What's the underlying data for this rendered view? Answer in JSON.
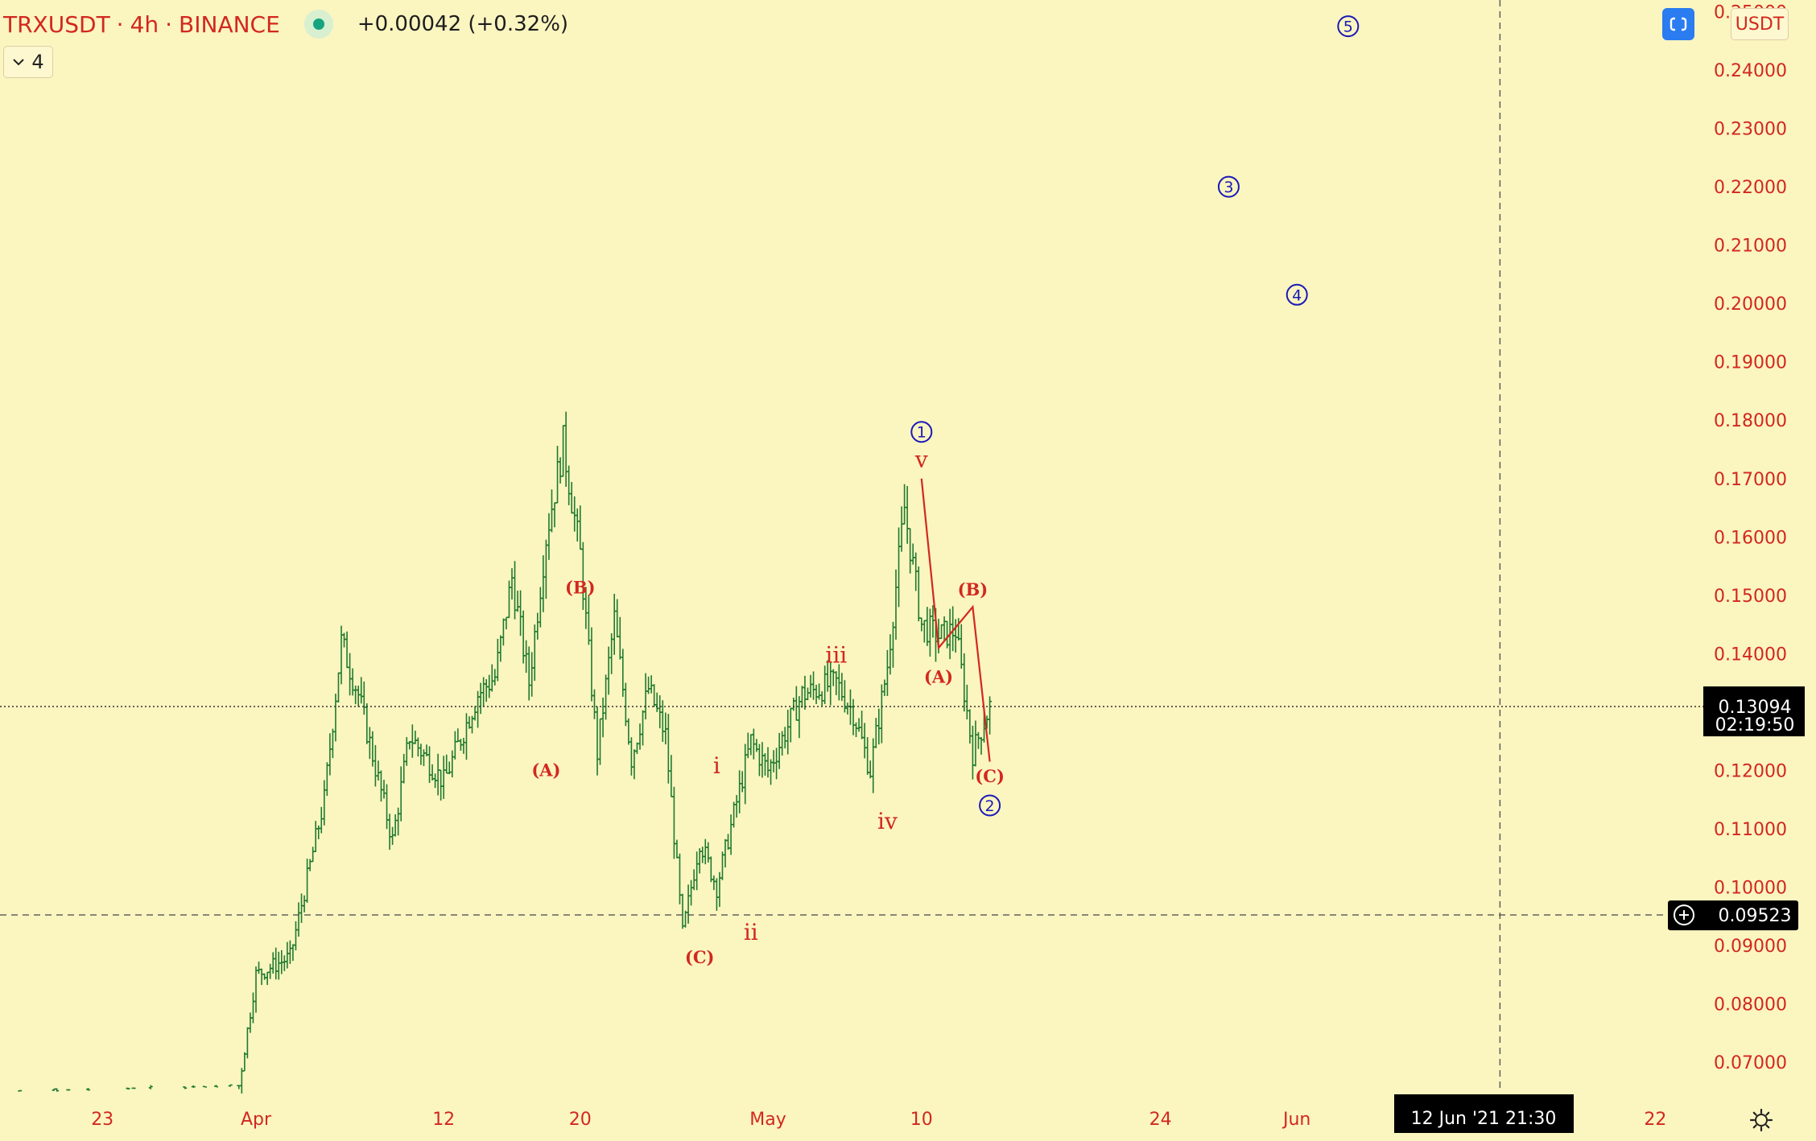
{
  "header": {
    "symbol": "TRXUSDT",
    "interval": "4h",
    "exchange": "BINANCE",
    "separator": "·",
    "change": "+0.00042 (+0.32%)",
    "collapse_label": "4"
  },
  "toolbar": {
    "currency": "USDT",
    "crosshair_date": "12 Jun '21",
    "crosshair_time": "21:30",
    "price_label_last": "0.13094",
    "price_label_countdown": "02:19:50",
    "price_label_horizontal": "0.09523"
  },
  "colors": {
    "background": "#fbf5c0",
    "bar": "#1f7a2e",
    "label_red": "#d2281f",
    "wave_blue": "#1a1ab8",
    "price_tag_bg": "#000000",
    "accent_button": "#2a7cf0"
  },
  "icons": {
    "collapse": "chevron-down-icon",
    "fullscreen": "screenshot-icon",
    "add_alert": "plus-circle-icon",
    "settings": "gear-icon"
  },
  "chart_data": {
    "type": "ohlc",
    "symbol": "TRXUSDT",
    "interval": "4h",
    "y_axis": {
      "scale": "linear",
      "ylim": [
        0.0645,
        0.252
      ],
      "tick_values": [
        0.07,
        0.08,
        0.09,
        0.1,
        0.11,
        0.12,
        0.13,
        0.14,
        0.15,
        0.16,
        0.17,
        0.18,
        0.19,
        0.2,
        0.21,
        0.22,
        0.23,
        0.24,
        0.25
      ],
      "tick_labels": [
        "0.07000",
        "0.08000",
        "0.09000",
        "0.10000",
        "0.11000",
        "0.12000",
        "0.13000",
        "0.14000",
        "0.15000",
        "0.16000",
        "0.17000",
        "0.18000",
        "0.19000",
        "0.20000",
        "0.21000",
        "0.22000",
        "0.23000",
        "0.24000",
        "0.25000"
      ]
    },
    "x_axis": {
      "xlim": [
        "2021-03-17",
        "2021-06-25"
      ],
      "ticks": [
        {
          "date": "2021-03-23",
          "label": "23"
        },
        {
          "date": "2021-04-01",
          "label": "Apr"
        },
        {
          "date": "2021-04-12",
          "label": "12"
        },
        {
          "date": "2021-04-20",
          "label": "20"
        },
        {
          "date": "2021-05-01",
          "label": "May"
        },
        {
          "date": "2021-05-10",
          "label": "10"
        },
        {
          "date": "2021-05-24",
          "label": "24"
        },
        {
          "date": "2021-06-01",
          "label": "Jun"
        },
        {
          "date": "2021-06-22",
          "label": "22"
        }
      ]
    },
    "price_path": [
      {
        "date": "2021-03-17",
        "price": 0.065
      },
      {
        "date": "2021-03-31",
        "price": 0.066
      },
      {
        "date": "2021-04-01",
        "price": 0.085
      },
      {
        "date": "2021-04-03",
        "price": 0.088
      },
      {
        "date": "2021-04-05",
        "price": 0.115
      },
      {
        "date": "2021-04-06",
        "price": 0.142
      },
      {
        "date": "2021-04-07",
        "price": 0.133
      },
      {
        "date": "2021-04-09",
        "price": 0.108
      },
      {
        "date": "2021-04-10",
        "price": 0.126
      },
      {
        "date": "2021-04-12",
        "price": 0.118
      },
      {
        "date": "2021-04-14",
        "price": 0.133
      },
      {
        "date": "2021-04-15",
        "price": 0.136
      },
      {
        "date": "2021-04-16",
        "price": 0.153
      },
      {
        "date": "2021-04-17",
        "price": 0.135
      },
      {
        "date": "2021-04-18",
        "price": 0.16
      },
      {
        "date": "2021-04-19",
        "price": 0.176
      },
      {
        "date": "2021-04-20",
        "price": 0.157
      },
      {
        "date": "2021-04-21",
        "price": 0.123
      },
      {
        "date": "2021-04-22",
        "price": 0.146
      },
      {
        "date": "2021-04-23",
        "price": 0.122
      },
      {
        "date": "2021-04-24",
        "price": 0.134
      },
      {
        "date": "2021-04-25",
        "price": 0.126
      },
      {
        "date": "2021-04-26",
        "price": 0.092
      },
      {
        "date": "2021-04-27",
        "price": 0.108
      },
      {
        "date": "2021-04-28",
        "price": 0.1
      },
      {
        "date": "2021-04-30",
        "price": 0.125
      },
      {
        "date": "2021-05-01",
        "price": 0.12
      },
      {
        "date": "2021-05-03",
        "price": 0.133
      },
      {
        "date": "2021-05-05",
        "price": 0.135
      },
      {
        "date": "2021-05-06",
        "price": 0.13
      },
      {
        "date": "2021-05-07",
        "price": 0.12
      },
      {
        "date": "2021-05-08",
        "price": 0.138
      },
      {
        "date": "2021-05-09",
        "price": 0.165
      },
      {
        "date": "2021-05-10",
        "price": 0.145
      },
      {
        "date": "2021-05-11",
        "price": 0.143
      },
      {
        "date": "2021-05-12",
        "price": 0.144
      },
      {
        "date": "2021-05-13",
        "price": 0.123
      },
      {
        "date": "2021-05-14",
        "price": 0.131
      }
    ],
    "horizontal_line": 0.09523,
    "last_price": 0.13094,
    "crosshair": {
      "date": "2021-06-12",
      "time": "21:30",
      "price": 0.09523
    },
    "wave_labels_red": [
      {
        "text": "(B)",
        "date": "2021-04-20",
        "price": 0.1503
      },
      {
        "text": "(A)",
        "date": "2021-04-18",
        "price": 0.119
      },
      {
        "text": "(C)",
        "date": "2021-04-27",
        "price": 0.087
      },
      {
        "text": "i",
        "date": "2021-04-28",
        "price": 0.1195
      },
      {
        "text": "ii",
        "date": "2021-04-30",
        "price": 0.091
      },
      {
        "text": "iii",
        "date": "2021-05-05",
        "price": 0.1385
      },
      {
        "text": "iv",
        "date": "2021-05-08",
        "price": 0.11
      },
      {
        "text": "v",
        "date": "2021-05-10",
        "price": 0.172
      },
      {
        "text": "(A)",
        "date": "2021-05-11",
        "price": 0.135
      },
      {
        "text": "(B)",
        "date": "2021-05-13",
        "price": 0.15
      },
      {
        "text": "(C)",
        "date": "2021-05-14",
        "price": 0.118
      }
    ],
    "wave_labels_blue": [
      {
        "text": "1",
        "date": "2021-05-10",
        "price": 0.178
      },
      {
        "text": "2",
        "date": "2021-05-14",
        "price": 0.114
      },
      {
        "text": "3",
        "date": "2021-05-28",
        "price": 0.22
      },
      {
        "text": "4",
        "date": "2021-06-01",
        "price": 0.2015
      },
      {
        "text": "5",
        "date": "2021-06-04",
        "price": 0.2475
      }
    ],
    "correction_lines": [
      [
        {
          "date": "2021-05-10",
          "price": 0.17
        },
        {
          "date": "2021-05-11",
          "price": 0.141
        },
        {
          "date": "2021-05-13",
          "price": 0.148
        },
        {
          "date": "2021-05-14",
          "price": 0.1215
        }
      ]
    ]
  }
}
